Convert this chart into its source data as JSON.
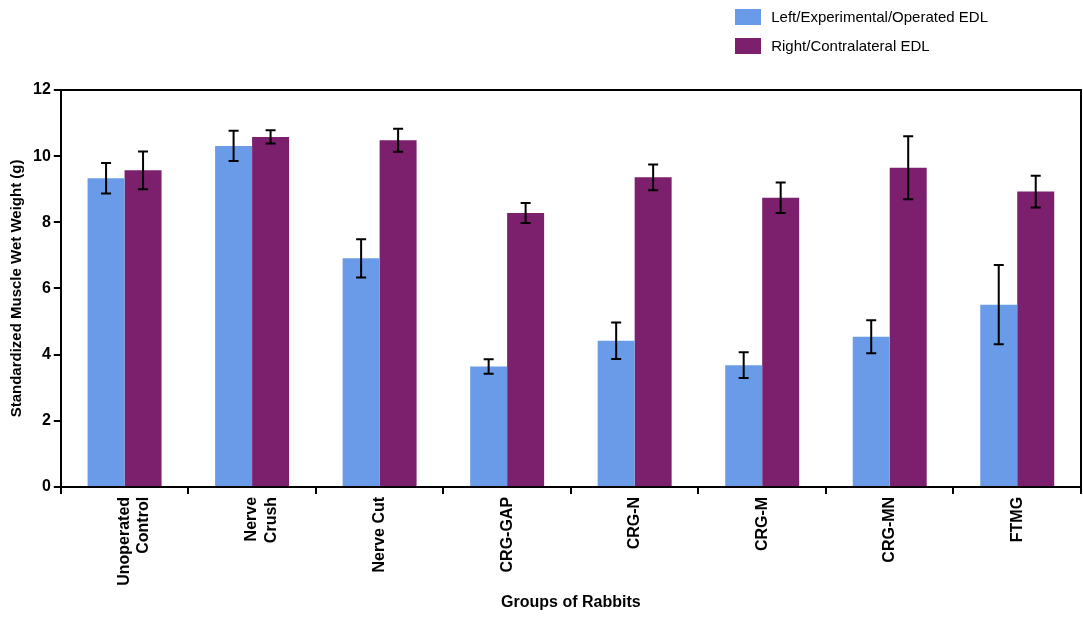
{
  "chart_data": {
    "type": "bar",
    "xlabel": "Groups of Rabbits",
    "ylabel": "Standardized Muscle Wet Weight (g)",
    "categories": [
      "Unoperated Control",
      "Nerve Crush",
      "Nerve Cut",
      "CRG-GAP",
      "CRG-N",
      "CRG-M",
      "CRG-MN",
      "FTMG"
    ],
    "series": [
      {
        "name": "Left/Experimental/Operated EDL",
        "color": "#6a9be8",
        "values": [
          9.33,
          10.31,
          6.91,
          3.64,
          4.42,
          3.68,
          4.54,
          5.51
        ],
        "errors": [
          0.46,
          0.46,
          0.58,
          0.22,
          0.55,
          0.39,
          0.5,
          1.2
        ]
      },
      {
        "name": "Right/Contralateral EDL",
        "color": "#7c1f6c",
        "values": [
          9.57,
          10.58,
          10.48,
          8.28,
          9.36,
          8.74,
          9.65,
          8.93
        ],
        "errors": [
          0.57,
          0.2,
          0.35,
          0.3,
          0.39,
          0.46,
          0.95,
          0.48
        ]
      }
    ],
    "ylim": [
      0,
      12
    ],
    "yticks": [
      0,
      2,
      4,
      6,
      8,
      10,
      12
    ],
    "grid": false,
    "legend": "top right"
  }
}
